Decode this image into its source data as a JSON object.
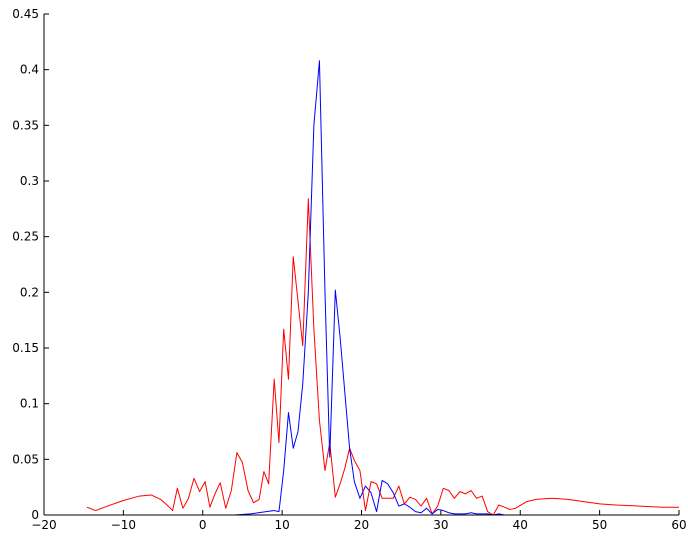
{
  "chart_data": {
    "type": "line",
    "title": "",
    "xlabel": "",
    "ylabel": "",
    "xlim": [
      -20,
      60
    ],
    "ylim": [
      0,
      0.45
    ],
    "grid": false,
    "legend": "none",
    "x_ticks": [
      -20,
      -10,
      0,
      10,
      20,
      30,
      40,
      50,
      60
    ],
    "x_tick_labels": [
      "−20",
      "−10",
      "0",
      "10",
      "20",
      "30",
      "40",
      "50",
      "60"
    ],
    "y_ticks": [
      0,
      0.05,
      0.1,
      0.15,
      0.2,
      0.25,
      0.3,
      0.35,
      0.4,
      0.45
    ],
    "y_tick_labels": [
      "0",
      "0.05",
      "0.1",
      "0.15",
      "0.2",
      "0.25",
      "0.3",
      "0.35",
      "0.4",
      "0.45"
    ],
    "series": [
      {
        "color": "#ff0000",
        "x": [
          -14.6,
          -13.5,
          -12.0,
          -10.0,
          -8.0,
          -6.5,
          -5.3,
          -4.5,
          -3.8,
          -3.2,
          -2.5,
          -1.8,
          -1.1,
          -0.4,
          0.3,
          0.9,
          1.6,
          2.2,
          2.9,
          3.6,
          4.3,
          5.0,
          5.7,
          6.4,
          7.1,
          7.7,
          8.3,
          9.0,
          9.6,
          10.2,
          10.8,
          11.4,
          12.0,
          12.6,
          13.3,
          14.0,
          14.7,
          15.4,
          16.0,
          16.7,
          17.3,
          17.9,
          18.5,
          19.1,
          19.8,
          20.5,
          21.2,
          21.9,
          22.6,
          23.3,
          24.0,
          24.7,
          25.4,
          26.1,
          26.8,
          27.5,
          28.2,
          28.9,
          29.6,
          30.3,
          31.0,
          31.7,
          32.4,
          33.1,
          33.8,
          34.5,
          35.2,
          35.9,
          36.6,
          37.3,
          38.0,
          38.7,
          39.4,
          40.1,
          40.8,
          42.0,
          44.0,
          46.0,
          48.0,
          50.0,
          52.0,
          55.0,
          58.0,
          60.0
        ],
        "y": [
          0.007,
          0.004,
          0.008,
          0.013,
          0.017,
          0.018,
          0.014,
          0.009,
          0.004,
          0.024,
          0.006,
          0.015,
          0.033,
          0.021,
          0.03,
          0.007,
          0.02,
          0.029,
          0.006,
          0.022,
          0.056,
          0.047,
          0.022,
          0.011,
          0.014,
          0.039,
          0.028,
          0.122,
          0.065,
          0.167,
          0.122,
          0.232,
          0.192,
          0.152,
          0.284,
          0.167,
          0.085,
          0.04,
          0.065,
          0.016,
          0.028,
          0.042,
          0.06,
          0.049,
          0.04,
          0.004,
          0.03,
          0.028,
          0.015,
          0.015,
          0.015,
          0.026,
          0.01,
          0.016,
          0.014,
          0.008,
          0.015,
          0.001,
          0.008,
          0.024,
          0.022,
          0.015,
          0.021,
          0.019,
          0.022,
          0.015,
          0.017,
          0.003,
          0.0,
          0.009,
          0.007,
          0.005,
          0.006,
          0.009,
          0.012,
          0.014,
          0.015,
          0.014,
          0.012,
          0.01,
          0.009,
          0.008,
          0.007,
          0.007
        ]
      },
      {
        "color": "#0000ff",
        "x": [
          4.0,
          6.0,
          8.0,
          9.0,
          9.6,
          10.2,
          10.8,
          11.4,
          12.0,
          12.6,
          13.3,
          14.0,
          14.7,
          15.4,
          16.0,
          16.7,
          17.3,
          17.9,
          18.5,
          19.1,
          19.8,
          20.5,
          21.2,
          21.9,
          22.6,
          23.3,
          24.0,
          24.7,
          25.4,
          26.1,
          26.8,
          27.5,
          28.2,
          28.9,
          29.6,
          30.3,
          31.0,
          31.7,
          32.4,
          33.1,
          33.8,
          34.5,
          35.2,
          35.9,
          36.6,
          37.3,
          38.0,
          38.7,
          39.4,
          40.1,
          40.8,
          45.0,
          50.0,
          55.0,
          60.0
        ],
        "y": [
          0.0,
          0.001,
          0.003,
          0.004,
          0.003,
          0.04,
          0.092,
          0.06,
          0.075,
          0.118,
          0.2,
          0.35,
          0.408,
          0.2,
          0.052,
          0.202,
          0.16,
          0.11,
          0.06,
          0.03,
          0.015,
          0.026,
          0.02,
          0.003,
          0.031,
          0.028,
          0.02,
          0.008,
          0.01,
          0.007,
          0.003,
          0.002,
          0.006,
          0.001,
          0.005,
          0.004,
          0.002,
          0.001,
          0.001,
          0.001,
          0.002,
          0.001,
          0.001,
          0.001,
          0.0,
          0.001,
          0.0,
          0.0,
          0.0,
          0.0,
          0.0,
          0.0,
          0.0,
          0.0,
          0.0
        ]
      }
    ]
  }
}
